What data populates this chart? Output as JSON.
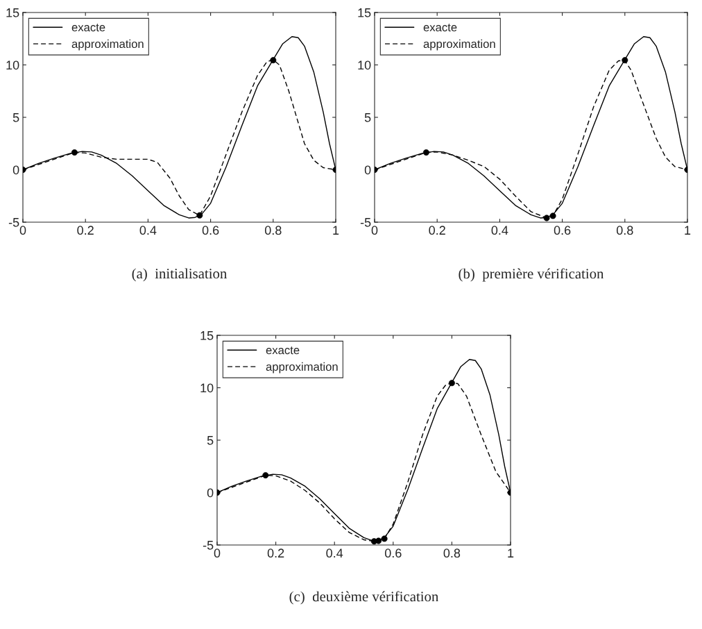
{
  "chart_data": [
    {
      "type": "line",
      "xlim": [
        0,
        1
      ],
      "ylim": [
        -5,
        15
      ],
      "xticks": [
        0,
        0.2,
        0.4,
        0.6,
        0.8,
        1
      ],
      "yticks": [
        -5,
        0,
        5,
        10,
        15
      ],
      "legend": "top left",
      "annotations": [
        "(a)  initialisation"
      ],
      "series": [
        {
          "name": "exacte",
          "color": "#000000",
          "line_style": "solid",
          "x": [
            0,
            0.05,
            0.1,
            0.15,
            0.19,
            0.22,
            0.25,
            0.3,
            0.35,
            0.4,
            0.45,
            0.5,
            0.53,
            0.55,
            0.57,
            0.6,
            0.65,
            0.7,
            0.75,
            0.8,
            0.83,
            0.86,
            0.88,
            0.9,
            0.93,
            0.96,
            0.98,
            1.0
          ],
          "values": [
            0,
            0.6,
            1.1,
            1.55,
            1.75,
            1.7,
            1.4,
            0.6,
            -0.6,
            -2,
            -3.4,
            -4.3,
            -4.6,
            -4.55,
            -4.3,
            -3.2,
            0.3,
            4.2,
            8,
            10.5,
            12.0,
            12.7,
            12.6,
            11.8,
            9.3,
            5.5,
            2.5,
            0
          ]
        },
        {
          "name": "approximation",
          "color": "#000000",
          "line_style": "dashed",
          "x": [
            0,
            0.08,
            0.165,
            0.2,
            0.25,
            0.3,
            0.35,
            0.4,
            0.43,
            0.47,
            0.5,
            0.53,
            0.565,
            0.6,
            0.65,
            0.7,
            0.75,
            0.78,
            0.8,
            0.82,
            0.85,
            0.88,
            0.9,
            0.93,
            0.96,
            1.0
          ],
          "values": [
            0,
            0.8,
            1.65,
            1.6,
            1.2,
            1.0,
            1.0,
            1.0,
            0.7,
            -0.8,
            -2.5,
            -3.8,
            -4.35,
            -2.5,
            1.5,
            5.5,
            9.0,
            10.3,
            10.5,
            10.0,
            7.5,
            4.5,
            2.5,
            0.9,
            0.2,
            0
          ]
        },
        {
          "type": "scatter",
          "color": "#000000",
          "marker": "circle",
          "x": [
            0,
            0.165,
            0.565,
            0.8,
            1
          ],
          "values": [
            0,
            1.65,
            -4.35,
            10.45,
            0
          ]
        }
      ]
    },
    {
      "type": "line",
      "xlim": [
        0,
        1
      ],
      "ylim": [
        -5,
        15
      ],
      "xticks": [
        0,
        0.2,
        0.4,
        0.6,
        0.8,
        1
      ],
      "yticks": [
        -5,
        0,
        5,
        10,
        15
      ],
      "legend": "top left",
      "annotations": [
        "(b)  première vérification"
      ],
      "series": [
        {
          "name": "exacte",
          "color": "#000000",
          "line_style": "solid",
          "x": [
            0,
            0.05,
            0.1,
            0.15,
            0.19,
            0.22,
            0.25,
            0.3,
            0.35,
            0.4,
            0.45,
            0.5,
            0.53,
            0.55,
            0.57,
            0.6,
            0.65,
            0.7,
            0.75,
            0.8,
            0.83,
            0.86,
            0.88,
            0.9,
            0.93,
            0.96,
            0.98,
            1.0
          ],
          "values": [
            0,
            0.6,
            1.1,
            1.55,
            1.75,
            1.7,
            1.4,
            0.6,
            -0.6,
            -2,
            -3.4,
            -4.3,
            -4.6,
            -4.55,
            -4.3,
            -3.2,
            0.3,
            4.2,
            8,
            10.5,
            12.0,
            12.7,
            12.6,
            11.8,
            9.3,
            5.5,
            2.5,
            0
          ]
        },
        {
          "name": "approximation",
          "color": "#000000",
          "line_style": "dashed",
          "x": [
            0,
            0.165,
            0.2,
            0.25,
            0.3,
            0.35,
            0.4,
            0.45,
            0.5,
            0.55,
            0.57,
            0.6,
            0.65,
            0.7,
            0.75,
            0.78,
            0.8,
            0.82,
            0.85,
            0.9,
            0.93,
            0.96,
            1.0
          ],
          "values": [
            0,
            1.65,
            1.7,
            1.4,
            0.9,
            0.3,
            -0.9,
            -2.5,
            -4.0,
            -4.6,
            -4.4,
            -2.8,
            1.5,
            6,
            9.5,
            10.4,
            10.4,
            9.5,
            7,
            3,
            1.2,
            0.3,
            0
          ]
        },
        {
          "type": "scatter",
          "color": "#000000",
          "marker": "circle",
          "x": [
            0,
            0.165,
            0.55,
            0.57,
            0.8,
            1
          ],
          "values": [
            0,
            1.65,
            -4.6,
            -4.4,
            10.45,
            0
          ]
        }
      ]
    },
    {
      "type": "line",
      "xlim": [
        0,
        1
      ],
      "ylim": [
        -5,
        15
      ],
      "xticks": [
        0,
        0.2,
        0.4,
        0.6,
        0.8,
        1
      ],
      "yticks": [
        -5,
        0,
        5,
        10,
        15
      ],
      "legend": "top left",
      "annotations": [
        "(c)  deuxième vérification"
      ],
      "series": [
        {
          "name": "exacte",
          "color": "#000000",
          "line_style": "solid",
          "x": [
            0,
            0.05,
            0.1,
            0.15,
            0.19,
            0.22,
            0.25,
            0.3,
            0.35,
            0.4,
            0.45,
            0.5,
            0.53,
            0.55,
            0.57,
            0.6,
            0.65,
            0.7,
            0.75,
            0.8,
            0.83,
            0.86,
            0.88,
            0.9,
            0.93,
            0.96,
            0.98,
            1.0
          ],
          "values": [
            0,
            0.6,
            1.1,
            1.55,
            1.75,
            1.7,
            1.4,
            0.6,
            -0.6,
            -2,
            -3.4,
            -4.3,
            -4.6,
            -4.55,
            -4.3,
            -3.2,
            0.3,
            4.2,
            8,
            10.5,
            12.0,
            12.7,
            12.6,
            11.8,
            9.3,
            5.5,
            2.5,
            0
          ]
        },
        {
          "name": "approximation",
          "color": "#000000",
          "line_style": "dashed",
          "x": [
            0,
            0.165,
            0.2,
            0.25,
            0.3,
            0.35,
            0.4,
            0.45,
            0.5,
            0.535,
            0.55,
            0.57,
            0.6,
            0.65,
            0.7,
            0.75,
            0.78,
            0.8,
            0.82,
            0.85,
            0.9,
            0.95,
            1.0
          ],
          "values": [
            0,
            1.65,
            1.6,
            1.1,
            0.2,
            -1,
            -2.5,
            -3.8,
            -4.5,
            -4.65,
            -4.6,
            -4.4,
            -3.0,
            1,
            5.5,
            9.2,
            10.3,
            10.45,
            10.4,
            9.2,
            5.5,
            2.0,
            0
          ]
        },
        {
          "type": "scatter",
          "color": "#000000",
          "marker": "circle",
          "x": [
            0,
            0.165,
            0.535,
            0.55,
            0.57,
            0.8,
            1
          ],
          "values": [
            0,
            1.65,
            -4.65,
            -4.6,
            -4.4,
            10.45,
            0
          ]
        }
      ]
    }
  ]
}
